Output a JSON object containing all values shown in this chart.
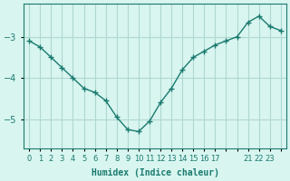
{
  "x": [
    0,
    1,
    2,
    3,
    4,
    5,
    6,
    7,
    8,
    9,
    10,
    11,
    12,
    13,
    14,
    15,
    16,
    17,
    18,
    19,
    20,
    21,
    22,
    23
  ],
  "y": [
    -3.1,
    -3.25,
    -3.5,
    -3.75,
    -4.0,
    -4.25,
    -4.35,
    -4.55,
    -4.95,
    -5.25,
    -5.3,
    -5.05,
    -4.6,
    -4.25,
    -3.8,
    -3.5,
    -3.35,
    -3.2,
    -3.1,
    -3.0,
    -2.65,
    -2.5,
    -2.75,
    -2.85
  ],
  "line_color": "#1a7a6e",
  "marker": "+",
  "bg_color": "#d8f5f0",
  "grid_color": "#b0d8d0",
  "axis_color": "#1a7a6e",
  "xlabel": "Humidex (Indice chaleur)",
  "yticks": [
    -3,
    -4,
    -5
  ],
  "ylim": [
    -5.7,
    -2.2
  ],
  "xlim": [
    -0.5,
    23.5
  ],
  "xtick_labels": [
    "0",
    "1",
    "2",
    "3",
    "4",
    "5",
    "6",
    "7",
    "8",
    "9",
    "10",
    "11",
    "12",
    "13",
    "14",
    "15",
    "16",
    "17",
    "",
    "",
    "21",
    "22",
    "23",
    ""
  ],
  "font_color": "#1a7a6e"
}
